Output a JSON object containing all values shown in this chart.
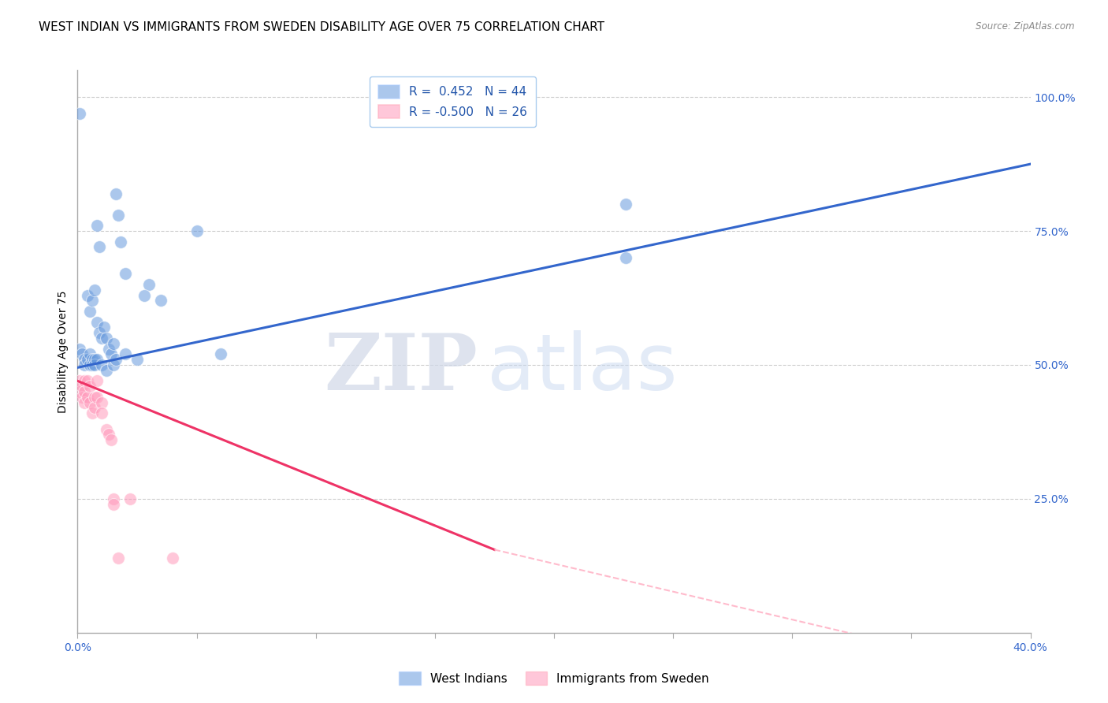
{
  "title": "WEST INDIAN VS IMMIGRANTS FROM SWEDEN DISABILITY AGE OVER 75 CORRELATION CHART",
  "source": "Source: ZipAtlas.com",
  "ylabel": "Disability Age Over 75",
  "legend_blue_r": "R =  0.452",
  "legend_blue_n": "N = 44",
  "legend_pink_r": "R = -0.500",
  "legend_pink_n": "N = 26",
  "blue_scatter": [
    [
      0.001,
      0.97
    ],
    [
      0.016,
      0.82
    ],
    [
      0.017,
      0.78
    ],
    [
      0.018,
      0.73
    ],
    [
      0.008,
      0.76
    ],
    [
      0.009,
      0.72
    ],
    [
      0.02,
      0.67
    ],
    [
      0.03,
      0.65
    ],
    [
      0.028,
      0.63
    ],
    [
      0.035,
      0.62
    ],
    [
      0.05,
      0.75
    ],
    [
      0.23,
      0.8
    ],
    [
      0.23,
      0.7
    ],
    [
      0.004,
      0.63
    ],
    [
      0.005,
      0.6
    ],
    [
      0.006,
      0.62
    ],
    [
      0.007,
      0.64
    ],
    [
      0.008,
      0.58
    ],
    [
      0.009,
      0.56
    ],
    [
      0.01,
      0.55
    ],
    [
      0.011,
      0.57
    ],
    [
      0.012,
      0.55
    ],
    [
      0.013,
      0.53
    ],
    [
      0.014,
      0.52
    ],
    [
      0.015,
      0.54
    ],
    [
      0.001,
      0.53
    ],
    [
      0.002,
      0.52
    ],
    [
      0.003,
      0.51
    ],
    [
      0.003,
      0.5
    ],
    [
      0.004,
      0.51
    ],
    [
      0.005,
      0.52
    ],
    [
      0.005,
      0.5
    ],
    [
      0.006,
      0.51
    ],
    [
      0.006,
      0.5
    ],
    [
      0.007,
      0.51
    ],
    [
      0.007,
      0.5
    ],
    [
      0.008,
      0.51
    ],
    [
      0.01,
      0.5
    ],
    [
      0.012,
      0.49
    ],
    [
      0.015,
      0.5
    ],
    [
      0.016,
      0.51
    ],
    [
      0.02,
      0.52
    ],
    [
      0.025,
      0.51
    ],
    [
      0.06,
      0.52
    ]
  ],
  "pink_scatter": [
    [
      0.001,
      0.47
    ],
    [
      0.001,
      0.45
    ],
    [
      0.002,
      0.46
    ],
    [
      0.002,
      0.44
    ],
    [
      0.003,
      0.47
    ],
    [
      0.003,
      0.45
    ],
    [
      0.003,
      0.43
    ],
    [
      0.004,
      0.47
    ],
    [
      0.004,
      0.44
    ],
    [
      0.005,
      0.46
    ],
    [
      0.005,
      0.43
    ],
    [
      0.006,
      0.41
    ],
    [
      0.007,
      0.44
    ],
    [
      0.007,
      0.42
    ],
    [
      0.008,
      0.47
    ],
    [
      0.008,
      0.44
    ],
    [
      0.01,
      0.43
    ],
    [
      0.01,
      0.41
    ],
    [
      0.012,
      0.38
    ],
    [
      0.013,
      0.37
    ],
    [
      0.014,
      0.36
    ],
    [
      0.015,
      0.25
    ],
    [
      0.015,
      0.24
    ],
    [
      0.017,
      0.14
    ],
    [
      0.022,
      0.25
    ],
    [
      0.04,
      0.14
    ]
  ],
  "blue_line": [
    [
      0.0,
      0.495
    ],
    [
      0.4,
      0.875
    ]
  ],
  "pink_line_solid": [
    [
      0.0,
      0.47
    ],
    [
      0.175,
      0.155
    ]
  ],
  "pink_line_dash": [
    [
      0.175,
      0.155
    ],
    [
      0.4,
      -0.08
    ]
  ],
  "xlim": [
    0.0,
    0.4
  ],
  "ylim": [
    0.0,
    1.05
  ],
  "background_color": "#ffffff",
  "blue_color": "#6699dd",
  "pink_color": "#ff99bb",
  "blue_line_color": "#3366cc",
  "pink_line_color": "#ee3366",
  "pink_dash_color": "#ffbbcc",
  "watermark_zip": "ZIP",
  "watermark_atlas": "atlas",
  "title_fontsize": 11,
  "axis_label_fontsize": 10,
  "tick_fontsize": 10,
  "legend_fontsize": 11
}
